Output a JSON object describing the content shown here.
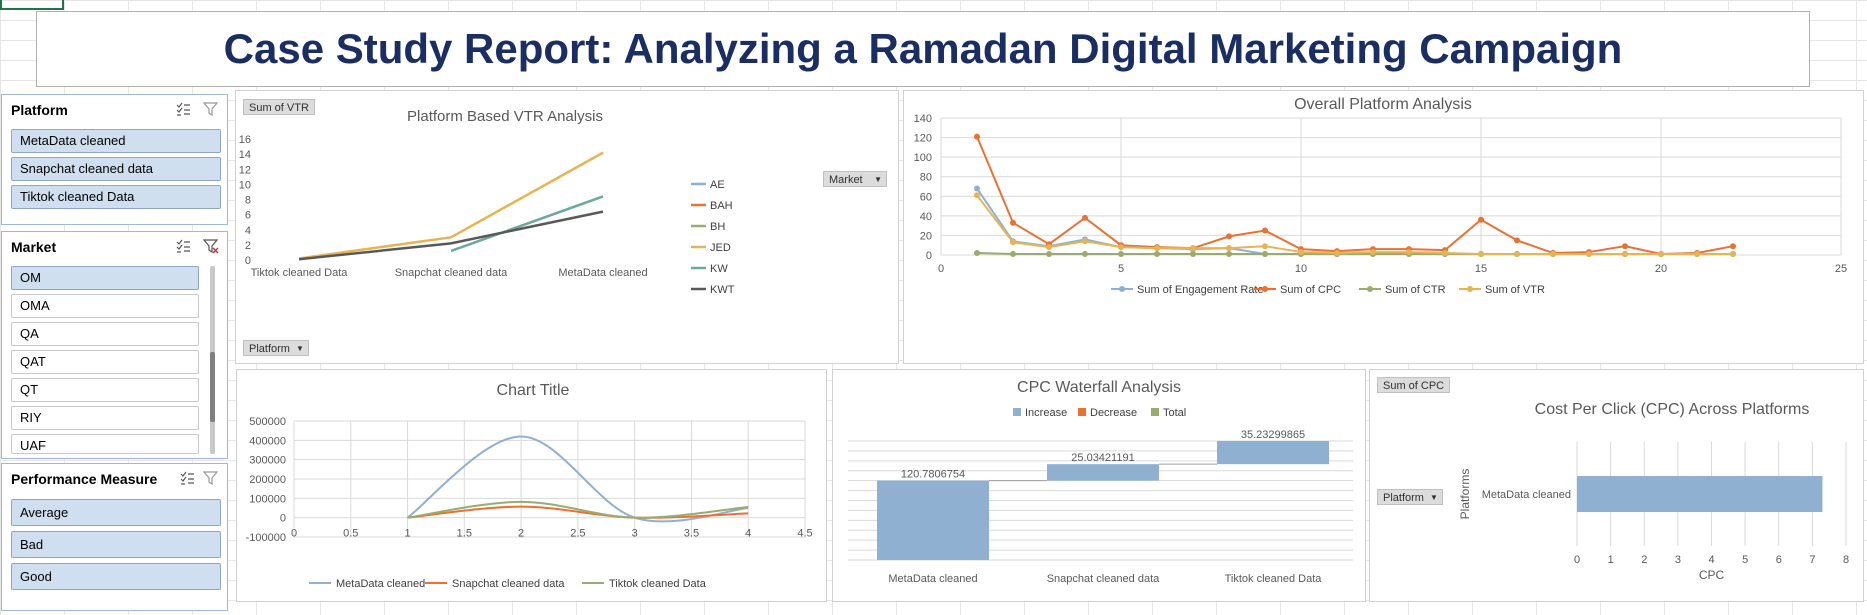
{
  "report_title": "Case Study Report: Analyzing a Ramadan Digital Marketing Campaign",
  "slicers": {
    "platform": {
      "title": "Platform",
      "items": [
        "MetaData cleaned",
        "Snapchat cleaned data",
        "Tiktok cleaned Data"
      ]
    },
    "market": {
      "title": "Market",
      "items": [
        "OM",
        "OMA",
        "QA",
        "QAT",
        "QT",
        "RIY",
        "UAF"
      ],
      "selected": "OM"
    },
    "performance": {
      "title": "Performance Measure",
      "items": [
        "Average",
        "Bad",
        "Good"
      ]
    }
  },
  "icons": {
    "multiselect": "multi-select-icon",
    "clear_filter": "clear-filter-icon",
    "dropdown": "dropdown-arrow-icon"
  },
  "colors": {
    "title": "#1a2e63",
    "blue": "#8fb0d0",
    "orange": "#e97132",
    "gray": "#a5a5a5",
    "gold": "#e6b452",
    "teal": "#6aa8a0",
    "dark": "#595959",
    "olive": "#9aab6f"
  },
  "vtr_chart": {
    "field_button": "Sum of VTR",
    "axis_button": "Platform",
    "legend_button": "Market"
  },
  "overall_chart": {},
  "curve_chart": {},
  "waterfall_chart": {},
  "cpc_chart": {
    "field_button": "Sum of CPC",
    "axis_button": "Platform"
  },
  "chart_data": [
    {
      "type": "line",
      "title": "Platform Based VTR Analysis",
      "categories": [
        "Tiktok cleaned Data",
        "Snapchat cleaned data",
        "MetaData cleaned"
      ],
      "ylim": [
        0,
        16
      ],
      "yticks": [
        0,
        2,
        4,
        6,
        8,
        10,
        12,
        14,
        16
      ],
      "legend_title": "Market",
      "series": [
        {
          "name": "AE",
          "values": [
            null,
            null,
            null
          ]
        },
        {
          "name": "BAH",
          "values": [
            null,
            null,
            null
          ]
        },
        {
          "name": "BH",
          "values": [
            null,
            null,
            null
          ]
        },
        {
          "name": "JED",
          "values": [
            0.2,
            3.0,
            14.2
          ]
        },
        {
          "name": "KW",
          "values": [
            null,
            1.2,
            8.4
          ]
        },
        {
          "name": "KWT",
          "values": [
            0.1,
            2.2,
            6.4
          ]
        }
      ],
      "legend_position": "right"
    },
    {
      "type": "scatter",
      "title": "Overall Platform Analysis",
      "xlim": [
        0,
        25
      ],
      "ylim": [
        0,
        140
      ],
      "xticks": [
        0,
        5,
        10,
        15,
        20,
        25
      ],
      "yticks": [
        0,
        20,
        40,
        60,
        80,
        100,
        120,
        140
      ],
      "x": [
        1,
        2,
        3,
        4,
        5,
        6,
        7,
        8,
        9,
        10,
        11,
        12,
        13,
        14,
        15,
        16,
        17,
        18,
        19,
        20,
        21,
        22
      ],
      "series": [
        {
          "name": "Sum of Engagement Rate",
          "values": [
            68,
            14,
            9,
            16,
            8,
            7,
            6,
            7,
            1,
            1,
            1,
            1,
            1,
            1,
            1,
            1,
            1,
            1,
            1,
            1,
            1,
            1
          ]
        },
        {
          "name": "Sum of CPC",
          "values": [
            121,
            33,
            11,
            38,
            10,
            8,
            7,
            19,
            25,
            6,
            4,
            6,
            6,
            5,
            36,
            15,
            2,
            3,
            9,
            1,
            2,
            9
          ]
        },
        {
          "name": "Sum of CTR",
          "values": [
            2,
            1,
            1,
            1,
            1,
            1,
            1,
            1,
            1,
            1,
            1,
            1,
            1,
            1,
            1,
            1,
            1,
            1,
            1,
            1,
            1,
            1
          ]
        },
        {
          "name": "Sum of VTR",
          "values": [
            61,
            13,
            8,
            14,
            8,
            7,
            7,
            7,
            9,
            3,
            2,
            3,
            3,
            2,
            1,
            1,
            1,
            1,
            1,
            1,
            1,
            1
          ]
        }
      ],
      "grid": true,
      "legend_position": "bottom"
    },
    {
      "type": "line",
      "title": "Chart Title",
      "xlim": [
        0,
        4.5
      ],
      "ylim": [
        -100000,
        500000
      ],
      "xticks": [
        "0",
        "0.5",
        "1",
        "1.5",
        "2",
        "2.5",
        "3",
        "3.5",
        "4",
        "4.5"
      ],
      "yticks": [
        "-100000",
        "0",
        "100000",
        "200000",
        "300000",
        "400000",
        "500000"
      ],
      "x": [
        1,
        2,
        3,
        4
      ],
      "series": [
        {
          "name": "MetaData cleaned",
          "values": [
            0,
            420000,
            0,
            50000
          ]
        },
        {
          "name": "Snapchat cleaned data",
          "values": [
            0,
            57000,
            0,
            22000
          ]
        },
        {
          "name": "Tiktok cleaned Data",
          "values": [
            0,
            82000,
            0,
            55000
          ]
        }
      ],
      "grid": true,
      "legend_position": "bottom"
    },
    {
      "type": "bar",
      "subtype": "waterfall",
      "title": "CPC Waterfall Analysis",
      "categories": [
        "MetaData cleaned",
        "Snapchat cleaned data",
        "Tiktok cleaned Data"
      ],
      "values": [
        120.7806754,
        25.03421191,
        35.23299865
      ],
      "labels": [
        "120.7806754",
        "25.03421191",
        "35.23299865"
      ],
      "legend": [
        "Increase",
        "Decrease",
        "Total"
      ],
      "legend_position": "top"
    },
    {
      "type": "bar",
      "orientation": "horizontal",
      "title": "Cost Per Click (CPC) Across Platforms",
      "categories": [
        "MetaData cleaned"
      ],
      "values": [
        7.3
      ],
      "xlim": [
        0,
        8
      ],
      "xticks": [
        0,
        1,
        2,
        3,
        4,
        5,
        6,
        7,
        8
      ],
      "xlabel": "CPC",
      "ylabel": "Platforms"
    }
  ]
}
